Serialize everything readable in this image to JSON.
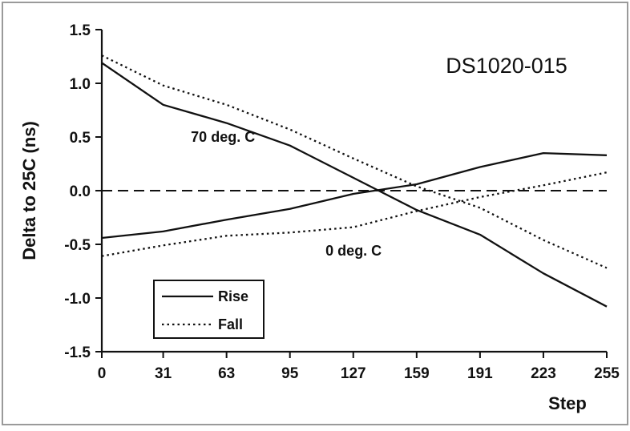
{
  "chart_data": {
    "type": "line",
    "title": "DS1020-015",
    "xlabel": "Step",
    "ylabel": "Delta to 25C (ns)",
    "x": [
      0,
      31,
      63,
      95,
      127,
      159,
      191,
      223,
      255
    ],
    "x_tick_labels": [
      "0",
      "31",
      "63",
      "95",
      "127",
      "159",
      "191",
      "223",
      "255"
    ],
    "xlim": [
      0,
      255
    ],
    "ylim": [
      -1.5,
      1.5
    ],
    "y_ticks": [
      -1.5,
      -1.0,
      -0.5,
      0.0,
      0.5,
      1.0,
      1.5
    ],
    "y_tick_labels": [
      "-1.5",
      "-1.0",
      "-0.5",
      "0.0",
      "0.5",
      "1.0",
      "1.5"
    ],
    "series": [
      {
        "name": "Rise",
        "group": "70 deg. C",
        "style": "solid",
        "values": [
          1.19,
          0.8,
          0.63,
          0.42,
          0.12,
          -0.18,
          -0.41,
          -0.77,
          -1.08
        ]
      },
      {
        "name": "Fall",
        "group": "70 deg. C",
        "style": "dotted",
        "values": [
          1.26,
          0.98,
          0.8,
          0.57,
          0.3,
          0.04,
          -0.16,
          -0.46,
          -0.72
        ]
      },
      {
        "name": "Rise",
        "group": "0 deg. C",
        "style": "solid",
        "values": [
          -0.44,
          -0.38,
          -0.27,
          -0.17,
          -0.03,
          0.06,
          0.22,
          0.35,
          0.33
        ]
      },
      {
        "name": "Fall",
        "group": "0 deg. C",
        "style": "dotted",
        "values": [
          -0.61,
          -0.51,
          -0.42,
          -0.39,
          -0.34,
          -0.19,
          -0.06,
          0.05,
          0.17
        ]
      }
    ],
    "reference_line": {
      "y": 0.0,
      "style": "dashed"
    },
    "annotations": [
      {
        "text": "70 deg. C",
        "x": 45,
        "y": 0.5
      },
      {
        "text": "0 deg. C",
        "x": 113,
        "y": -0.56
      }
    ],
    "legend": {
      "position": "bottom-left",
      "entries": [
        {
          "label": "Rise",
          "style": "solid"
        },
        {
          "label": "Fall",
          "style": "dotted"
        }
      ]
    },
    "grid": false,
    "colors": {
      "line": "#111111",
      "background": "#ffffff",
      "frame": "#9a9a9a"
    }
  }
}
